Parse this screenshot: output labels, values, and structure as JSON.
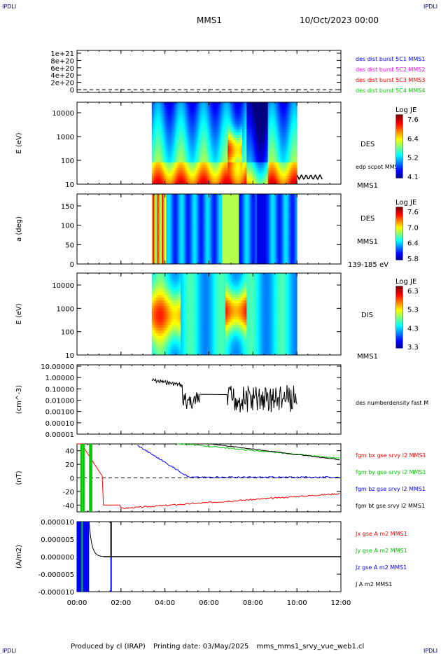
{
  "header": {
    "corner_label": "IPDLI",
    "title": "MMS1",
    "date": "10/Oct/2023 00:00"
  },
  "footer": {
    "produced_by": "Produced by cl (IRAP)",
    "printing_date": "Printing date: 03/May/2025",
    "filename": "mms_mms1_srvy_vue_web1.cl"
  },
  "x_axis": {
    "ticks": [
      "00:00",
      "02:00",
      "04:00",
      "06:00",
      "08:00",
      "10:00",
      "12:00"
    ],
    "range_hours": [
      0,
      12
    ]
  },
  "chart_data": [
    {
      "type": "line",
      "panel": "burst",
      "y_ticks": [
        "1e+21",
        "8e+20",
        "6e+20",
        "4e+20",
        "2e+20",
        "0"
      ],
      "legend": [
        {
          "name": "des dist burst 5C1 MMS1",
          "color": "#0000ff"
        },
        {
          "name": "des dist burst 5C2 MMS2",
          "color": "#ff00ff"
        },
        {
          "name": "des dist burst 5C3 MMS3",
          "color": "#ff0000"
        },
        {
          "name": "des dist burst 5C4 MMS4",
          "color": "#00cc00"
        }
      ]
    },
    {
      "type": "heatmap",
      "panel": "des_energy",
      "ylabel": "E (eV)",
      "y_scale": "log",
      "y_ticks": [
        "10000",
        "1000",
        "100",
        "10"
      ],
      "label": "DES",
      "sublabel": "MMS1",
      "overlay_label": "edp scpot MMS1",
      "colorbar": {
        "title": "Log JE",
        "ticks": [
          "7.6",
          "6.4",
          "5.2",
          "4.1"
        ]
      },
      "data_time_range_hours": [
        3.4,
        10.0
      ]
    },
    {
      "type": "heatmap",
      "panel": "des_pitch",
      "ylabel": "a (deg)",
      "y_ticks": [
        "150",
        "100",
        "50",
        "0"
      ],
      "label": "DES",
      "sublabel": "MMS1",
      "energy_label": "139-185 eV",
      "colorbar": {
        "title": "Log JE",
        "ticks": [
          "7.6",
          "7.0",
          "6.4",
          "5.8"
        ]
      },
      "data_time_range_hours": [
        3.4,
        10.0
      ]
    },
    {
      "type": "heatmap",
      "panel": "dis_energy",
      "ylabel": "E (eV)",
      "y_scale": "log",
      "y_ticks": [
        "10000",
        "1000",
        "100",
        "10"
      ],
      "label": "DIS",
      "sublabel": "MMS1",
      "colorbar": {
        "title": "Log JE",
        "ticks": [
          "6.3",
          "5.3",
          "4.3",
          "3.3"
        ]
      },
      "data_time_range_hours": [
        3.4,
        10.0
      ]
    },
    {
      "type": "line",
      "panel": "density",
      "ylabel": "(cm^-3)",
      "y_scale": "log",
      "y_ticks": [
        "10.00000",
        "1.00000",
        "0.10000",
        "0.01000",
        "0.00100",
        "0.00010",
        "0.00001"
      ],
      "series": [
        {
          "name": "des numberdensity fast M",
          "color": "#000000"
        }
      ]
    },
    {
      "type": "line",
      "panel": "fgm",
      "ylabel": "(nT)",
      "y_ticks": [
        "40",
        "20",
        "0",
        "-20",
        "-40"
      ],
      "ylim": [
        -50,
        50
      ],
      "series": [
        {
          "name": "fgm bx gse srvy l2 MMS1",
          "color": "#ff0000"
        },
        {
          "name": "fgm by gse srvy l2 MMS1",
          "color": "#00cc00"
        },
        {
          "name": "fgm bz gse srvy l2 MMS1",
          "color": "#0000ff"
        },
        {
          "name": "fgm bt gse srvy l2 MMS1",
          "color": "#000000"
        }
      ]
    },
    {
      "type": "line",
      "panel": "current",
      "ylabel": "(A/m2)",
      "y_ticks": [
        "0.000010",
        "0.000005",
        "0.000000",
        "-0.000005",
        "-0.000010"
      ],
      "ylim": [
        -1e-05,
        1e-05
      ],
      "series": [
        {
          "name": "Jx gse A m2 MMS1",
          "color": "#ff0000"
        },
        {
          "name": "Jy gse A m2 MMS1",
          "color": "#00cc00"
        },
        {
          "name": "Jz gse A m2 MMS1",
          "color": "#0000ff"
        },
        {
          "name": "J A m2 MMS1",
          "color": "#000000"
        }
      ]
    }
  ]
}
